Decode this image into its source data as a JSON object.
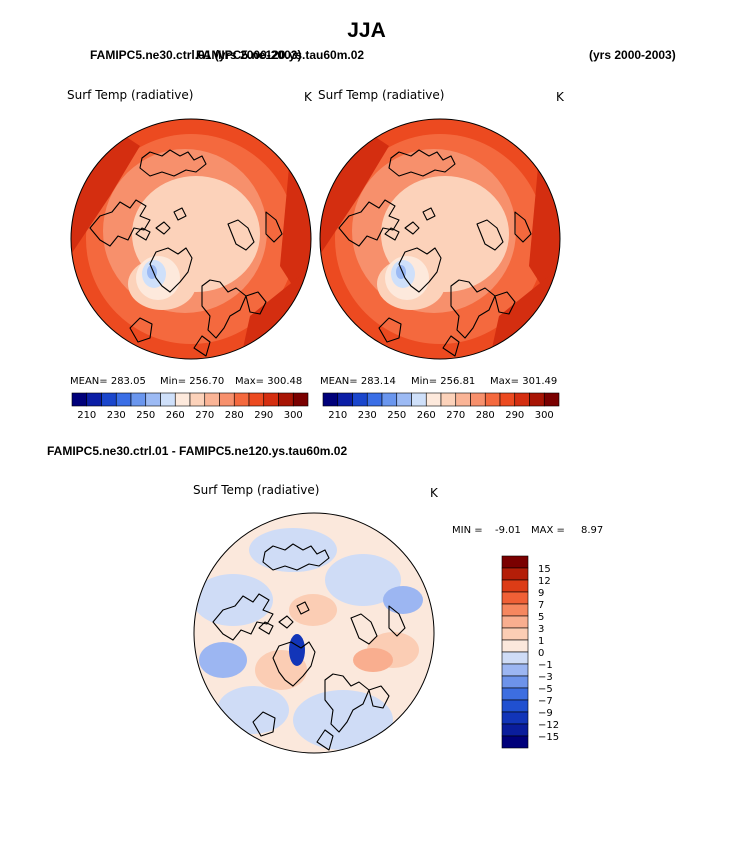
{
  "page": {
    "title": "JJA",
    "case1": "FAMIPC5.ne30.ctrl.01 (yrs 2000-2003)",
    "case2": "FAMIPC5.ne120.ys.tau60m.02",
    "case2_years": "(yrs 2000-2003)",
    "diff_title": "FAMIPC5.ne30.ctrl.01 - FAMIPC5.ne120.ys.tau60m.02"
  },
  "palettes": {
    "abs": [
      "#00007a",
      "#0b1ea6",
      "#1a46cc",
      "#3a6ee6",
      "#6a96ee",
      "#9cbaf4",
      "#cfe0fa",
      "#fde9dc",
      "#fcd2ba",
      "#fab496",
      "#f7906c",
      "#f4693e",
      "#ec4a20",
      "#d42e10",
      "#a81404",
      "#7a0000"
    ],
    "diff": [
      "#00007a",
      "#0a1d9c",
      "#1235b8",
      "#2050d0",
      "#3d6ee0",
      "#6d93ea",
      "#9cb6f2",
      "#cfdcf6",
      "#fbe8dc",
      "#fbcdb4",
      "#f9ae8f",
      "#f6875f",
      "#f06036",
      "#dc3c16",
      "#b41e08",
      "#7a0000"
    ]
  },
  "chart_data": [
    {
      "type": "heatmap",
      "projection": "north polar stereographic",
      "title": "Surf Temp (radiative)",
      "units": "K",
      "stats": {
        "mean": "MEAN= 283.05",
        "min": "Min= 256.70",
        "max": "Max= 300.48"
      },
      "colorbar_ticks": [
        "210",
        "230",
        "250",
        "260",
        "270",
        "280",
        "290",
        "300"
      ]
    },
    {
      "type": "heatmap",
      "projection": "north polar stereographic",
      "title": "Surf Temp (radiative)",
      "units": "K",
      "stats": {
        "mean": "MEAN= 283.14",
        "min": "Min= 256.81",
        "max": "Max= 301.49"
      },
      "colorbar_ticks": [
        "210",
        "230",
        "250",
        "260",
        "270",
        "280",
        "290",
        "300"
      ]
    },
    {
      "type": "heatmap",
      "projection": "north polar stereographic",
      "title": "Surf Temp (radiative)",
      "units": "K",
      "stats": {
        "min_label": "MIN =",
        "min": "-9.01",
        "max_label": "MAX =",
        "max": "8.97"
      },
      "colorbar_ticks": [
        "15",
        "12",
        "9",
        "7",
        "5",
        "3",
        "1",
        "0",
        "−1",
        "−3",
        "−5",
        "−7",
        "−9",
        "−12",
        "−15"
      ]
    }
  ]
}
